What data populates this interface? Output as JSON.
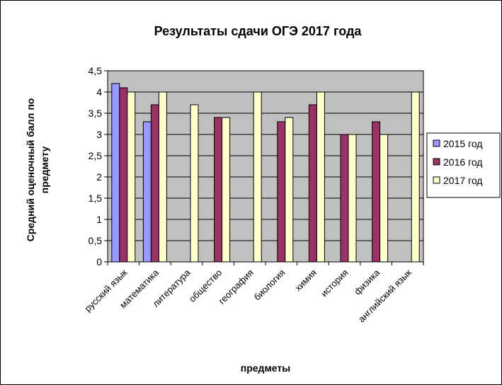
{
  "chart_data": {
    "type": "bar",
    "title": "Результаты сдачи ОГЭ 2017 года",
    "xlabel": "предметы",
    "ylabel_lines": [
      "Средний оценочный балл по",
      "предмету"
    ],
    "ylim": [
      0,
      4.5
    ],
    "yticks": [
      "0",
      "0,5",
      "1",
      "1,5",
      "2",
      "2,5",
      "3",
      "3,5",
      "4",
      "4,5"
    ],
    "ytick_values": [
      0,
      0.5,
      1,
      1.5,
      2,
      2.5,
      3,
      3.5,
      4,
      4.5
    ],
    "grid": true,
    "legend_position": "right",
    "categories": [
      "русский язык",
      "математика",
      "литература",
      "обществo",
      "география",
      "биология",
      "химия",
      "история",
      "физика",
      "английский язык"
    ],
    "series": [
      {
        "name": "2015 год",
        "color": "#9999ff",
        "values": [
          4.2,
          3.3,
          null,
          null,
          null,
          null,
          null,
          null,
          null,
          null
        ]
      },
      {
        "name": "2016 год",
        "color": "#993366",
        "values": [
          4.1,
          3.7,
          null,
          3.4,
          null,
          3.3,
          3.7,
          3.0,
          3.3,
          null
        ]
      },
      {
        "name": "2017 год",
        "color": "#ffffcc",
        "values": [
          4.0,
          4.0,
          3.7,
          3.4,
          4.0,
          3.4,
          4.0,
          3.0,
          3.0,
          4.0
        ]
      }
    ],
    "colors": {
      "plot_bg": "#c0c0c0",
      "grid": "#000000",
      "border": "#000000"
    }
  }
}
